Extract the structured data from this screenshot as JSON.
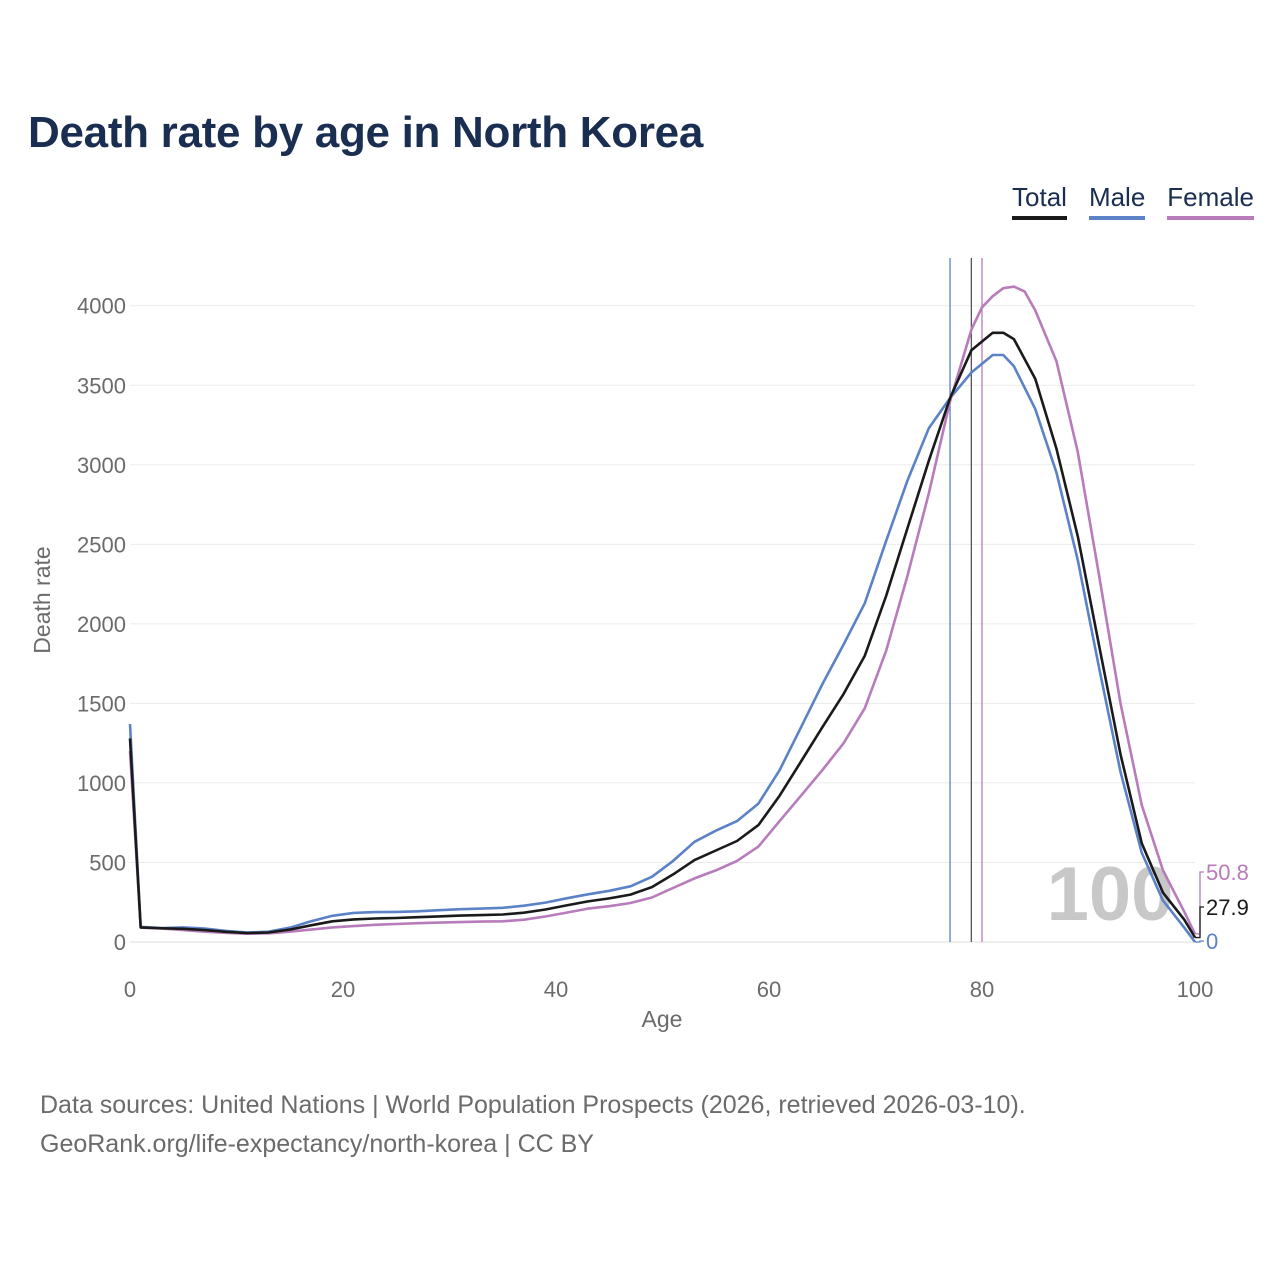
{
  "header": {
    "title": "Death rate by age in North Korea"
  },
  "legend": {
    "items": [
      {
        "label": "Total",
        "color": "#1a1a1a"
      },
      {
        "label": "Male",
        "color": "#5b82c6"
      },
      {
        "label": "Female",
        "color": "#b87bbb"
      }
    ]
  },
  "chart_data": {
    "type": "line",
    "title": "Death rate by age in North Korea",
    "xlabel": "Age",
    "ylabel": "Death rate",
    "xlim": [
      0,
      100
    ],
    "ylim": [
      0,
      4300
    ],
    "xticks": [
      0,
      20,
      40,
      60,
      80,
      100
    ],
    "yticks": [
      0,
      500,
      1000,
      1500,
      2000,
      2500,
      3000,
      3500,
      4000
    ],
    "grid": true,
    "legend_position": "top-right",
    "year_watermark": "100",
    "series": [
      {
        "name": "Male",
        "color": "#5b82c6",
        "end_label": "0",
        "points": [
          [
            0,
            1370
          ],
          [
            1,
            95
          ],
          [
            3,
            88
          ],
          [
            5,
            92
          ],
          [
            7,
            85
          ],
          [
            9,
            70
          ],
          [
            11,
            60
          ],
          [
            13,
            65
          ],
          [
            15,
            90
          ],
          [
            17,
            130
          ],
          [
            19,
            165
          ],
          [
            21,
            183
          ],
          [
            23,
            188
          ],
          [
            25,
            189
          ],
          [
            27,
            193
          ],
          [
            29,
            200
          ],
          [
            31,
            206
          ],
          [
            33,
            210
          ],
          [
            35,
            215
          ],
          [
            37,
            228
          ],
          [
            39,
            248
          ],
          [
            41,
            275
          ],
          [
            43,
            300
          ],
          [
            45,
            322
          ],
          [
            47,
            350
          ],
          [
            49,
            410
          ],
          [
            51,
            510
          ],
          [
            53,
            630
          ],
          [
            55,
            700
          ],
          [
            57,
            760
          ],
          [
            59,
            870
          ],
          [
            61,
            1080
          ],
          [
            63,
            1350
          ],
          [
            65,
            1620
          ],
          [
            67,
            1870
          ],
          [
            69,
            2130
          ],
          [
            71,
            2520
          ],
          [
            73,
            2900
          ],
          [
            75,
            3230
          ],
          [
            77,
            3420
          ],
          [
            79,
            3580
          ],
          [
            81,
            3690
          ],
          [
            82,
            3690
          ],
          [
            83,
            3620
          ],
          [
            85,
            3350
          ],
          [
            87,
            2950
          ],
          [
            89,
            2400
          ],
          [
            91,
            1720
          ],
          [
            93,
            1070
          ],
          [
            95,
            560
          ],
          [
            97,
            260
          ],
          [
            99,
            90
          ],
          [
            100,
            0
          ]
        ]
      },
      {
        "name": "Female",
        "color": "#b87bbb",
        "end_label": "50.8",
        "points": [
          [
            0,
            1200
          ],
          [
            1,
            90
          ],
          [
            3,
            85
          ],
          [
            5,
            75
          ],
          [
            7,
            65
          ],
          [
            9,
            58
          ],
          [
            11,
            52
          ],
          [
            13,
            55
          ],
          [
            15,
            65
          ],
          [
            17,
            78
          ],
          [
            19,
            92
          ],
          [
            21,
            100
          ],
          [
            23,
            108
          ],
          [
            25,
            113
          ],
          [
            27,
            118
          ],
          [
            29,
            122
          ],
          [
            31,
            125
          ],
          [
            33,
            128
          ],
          [
            35,
            130
          ],
          [
            37,
            140
          ],
          [
            39,
            160
          ],
          [
            41,
            185
          ],
          [
            43,
            210
          ],
          [
            45,
            225
          ],
          [
            47,
            245
          ],
          [
            49,
            280
          ],
          [
            51,
            340
          ],
          [
            53,
            400
          ],
          [
            55,
            450
          ],
          [
            57,
            510
          ],
          [
            59,
            600
          ],
          [
            61,
            760
          ],
          [
            63,
            920
          ],
          [
            65,
            1080
          ],
          [
            67,
            1250
          ],
          [
            69,
            1470
          ],
          [
            71,
            1830
          ],
          [
            73,
            2300
          ],
          [
            75,
            2820
          ],
          [
            77,
            3400
          ],
          [
            79,
            3850
          ],
          [
            80,
            3990
          ],
          [
            81,
            4060
          ],
          [
            82,
            4110
          ],
          [
            83,
            4120
          ],
          [
            84,
            4090
          ],
          [
            85,
            3970
          ],
          [
            87,
            3650
          ],
          [
            89,
            3080
          ],
          [
            91,
            2300
          ],
          [
            93,
            1500
          ],
          [
            95,
            860
          ],
          [
            97,
            450
          ],
          [
            99,
            190
          ],
          [
            100,
            51
          ]
        ]
      },
      {
        "name": "Total",
        "color": "#1a1a1a",
        "end_label": "27.9",
        "points": [
          [
            0,
            1280
          ],
          [
            1,
            92
          ],
          [
            3,
            86
          ],
          [
            5,
            83
          ],
          [
            7,
            75
          ],
          [
            9,
            64
          ],
          [
            11,
            56
          ],
          [
            13,
            60
          ],
          [
            15,
            78
          ],
          [
            17,
            105
          ],
          [
            19,
            130
          ],
          [
            21,
            142
          ],
          [
            23,
            148
          ],
          [
            25,
            151
          ],
          [
            27,
            156
          ],
          [
            29,
            161
          ],
          [
            31,
            166
          ],
          [
            33,
            169
          ],
          [
            35,
            173
          ],
          [
            37,
            184
          ],
          [
            39,
            204
          ],
          [
            41,
            230
          ],
          [
            43,
            255
          ],
          [
            45,
            274
          ],
          [
            47,
            298
          ],
          [
            49,
            345
          ],
          [
            51,
            425
          ],
          [
            53,
            515
          ],
          [
            55,
            575
          ],
          [
            57,
            635
          ],
          [
            59,
            735
          ],
          [
            61,
            920
          ],
          [
            63,
            1135
          ],
          [
            65,
            1350
          ],
          [
            67,
            1560
          ],
          [
            69,
            1800
          ],
          [
            71,
            2175
          ],
          [
            73,
            2600
          ],
          [
            75,
            3025
          ],
          [
            77,
            3420
          ],
          [
            79,
            3720
          ],
          [
            81,
            3830
          ],
          [
            82,
            3830
          ],
          [
            83,
            3790
          ],
          [
            85,
            3540
          ],
          [
            87,
            3100
          ],
          [
            89,
            2550
          ],
          [
            91,
            1860
          ],
          [
            93,
            1180
          ],
          [
            95,
            620
          ],
          [
            97,
            310
          ],
          [
            99,
            140
          ],
          [
            100,
            28
          ]
        ]
      }
    ],
    "reference_lines": [
      {
        "name": "Male life expectancy",
        "x": 77.0,
        "color": "#5b82c6"
      },
      {
        "name": "Total life expectancy",
        "x": 79.0,
        "color": "#555555"
      },
      {
        "name": "Female life expectancy",
        "x": 80.0,
        "color": "#b87bbb"
      }
    ]
  },
  "footer": {
    "sources": "Data sources: United Nations | World Population Prospects (2026, retrieved 2026-03-10).",
    "credit": "GeoRank.org/life-expectancy/north-korea | CC BY"
  }
}
